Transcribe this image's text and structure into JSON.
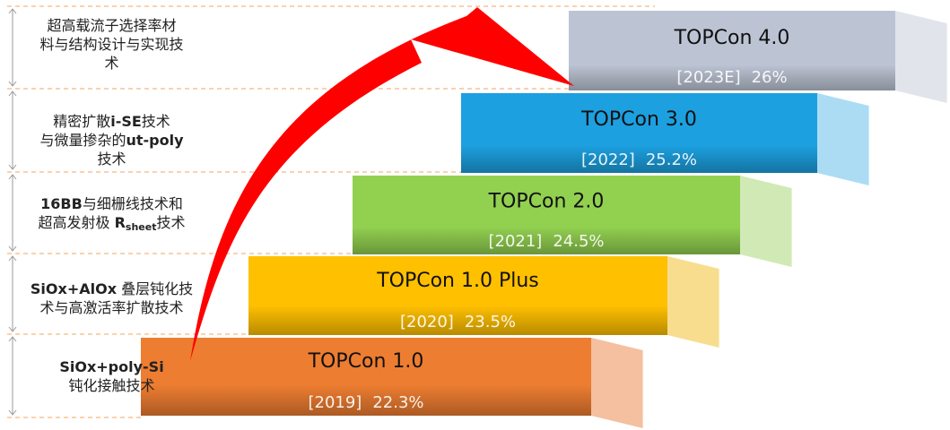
{
  "steps": [
    {
      "name": "TOPCon 1.0",
      "year": "[2019]",
      "efficiency": "22.3%",
      "color": "#ED7D31",
      "side": "#F2B58E"
    },
    {
      "name": "TOPCon 1.0 Plus",
      "year": "[2020]",
      "efficiency": "23.5%",
      "color": "#FFC000",
      "side": "#F7D77A"
    },
    {
      "name": "TOPCon 2.0",
      "year": "[2021]",
      "efficiency": "24.5%",
      "color": "#92D050",
      "side": "#C9E6A8"
    },
    {
      "name": "TOPCon 3.0",
      "year": "[2022]",
      "efficiency": "25.2%",
      "color": "#1CA0E0",
      "side": "#9CD6F2"
    },
    {
      "name": "TOPCon 4.0",
      "year": "[2023E]",
      "efficiency": "26%",
      "color": "#BCC4D4",
      "side": "#DCE0E8"
    }
  ],
  "techs": [
    {
      "parts": [
        {
          "t": "超高载流子选择率材"
        },
        {
          "t": "\n"
        },
        {
          "t": "料与结构设计与实现技"
        },
        {
          "t": "\n"
        },
        {
          "t": "术"
        }
      ]
    },
    {
      "parts": [
        {
          "t": "精密扩散"
        },
        {
          "t": "i-SE",
          "b": true
        },
        {
          "t": "技术"
        },
        {
          "t": "\n"
        },
        {
          "t": "与微量掺杂的"
        },
        {
          "t": "ut-poly",
          "b": true
        },
        {
          "t": "\n"
        },
        {
          "t": "技术"
        }
      ]
    },
    {
      "parts": [
        {
          "t": "16BB",
          "b": true
        },
        {
          "t": "与细栅线技术和"
        },
        {
          "t": "\n"
        },
        {
          "t": "超高发射极 "
        },
        {
          "t": "R",
          "b": true
        },
        {
          "t": "sheet",
          "sub": true
        },
        {
          "t": "技术"
        }
      ]
    },
    {
      "parts": [
        {
          "t": "SiOx+AlOx",
          "b": true
        },
        {
          "t": " 叠层钝化技"
        },
        {
          "t": "\n"
        },
        {
          "t": "术与高激活率扩散技术"
        }
      ]
    },
    {
      "parts": [
        {
          "t": "SiOx+poly-Si",
          "b": true
        },
        {
          "t": "\n"
        },
        {
          "t": "钝化接触技术"
        }
      ]
    }
  ],
  "colors": {
    "arrow": "#FF0000",
    "guide": "#F4A460",
    "bracket": "#999999"
  }
}
